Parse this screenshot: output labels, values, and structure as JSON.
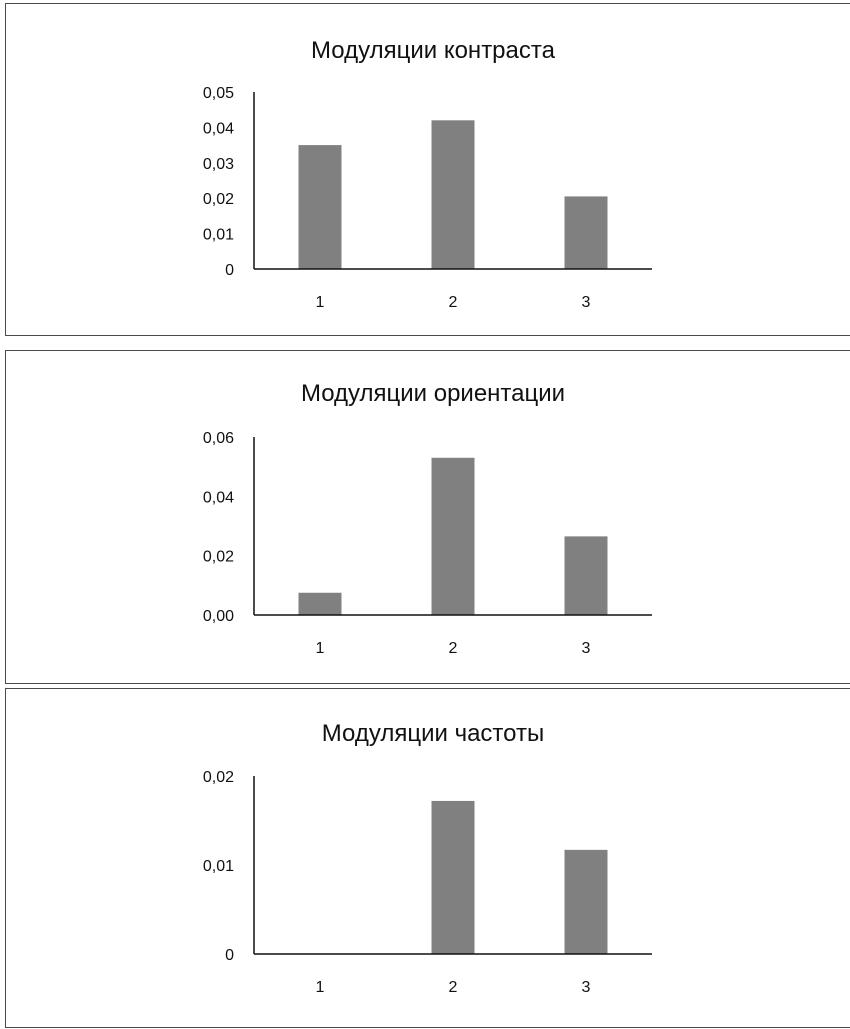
{
  "chart_data": [
    {
      "type": "bar",
      "title": "Модуляции контраста",
      "categories": [
        "1",
        "2",
        "3"
      ],
      "values": [
        0.035,
        0.042,
        0.0205
      ],
      "ylim": [
        0,
        0.05
      ],
      "yticks": [
        "0",
        "0,01",
        "0,02",
        "0,03",
        "0,04",
        "0,05"
      ],
      "ytick_values": [
        0,
        0.01,
        0.02,
        0.03,
        0.04,
        0.05
      ],
      "grid": false,
      "color": "#808080"
    },
    {
      "type": "bar",
      "title": "Модуляции ориентации",
      "categories": [
        "1",
        "2",
        "3"
      ],
      "values": [
        0.0075,
        0.053,
        0.0265
      ],
      "ylim": [
        0,
        0.06
      ],
      "yticks": [
        "0,00",
        "0,02",
        "0,04",
        "0,06"
      ],
      "ytick_values": [
        0,
        0.02,
        0.04,
        0.06
      ],
      "grid": false,
      "color": "#808080"
    },
    {
      "type": "bar",
      "title": "Модуляции частоты",
      "categories": [
        "1",
        "2",
        "3"
      ],
      "values": [
        0,
        0.0172,
        0.0117
      ],
      "ylim": [
        0,
        0.02
      ],
      "yticks": [
        "0",
        "0,01",
        "0,02"
      ],
      "ytick_values": [
        0,
        0.01,
        0.02
      ],
      "grid": false,
      "color": "#808080"
    }
  ]
}
